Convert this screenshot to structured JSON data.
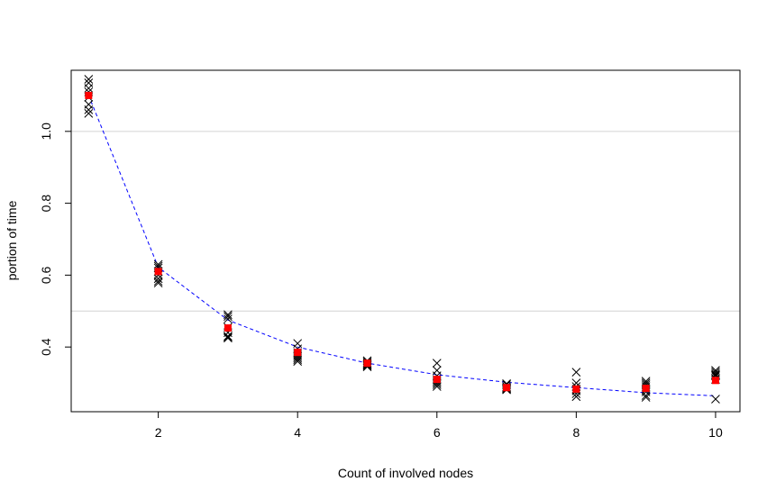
{
  "chart_data": {
    "type": "scatter",
    "title": "",
    "xlabel": "Count of involved nodes",
    "ylabel": "portion of time",
    "xlim": [
      0.75,
      10.35
    ],
    "ylim": [
      0.22,
      1.17
    ],
    "x_ticks": [
      2,
      4,
      6,
      8,
      10
    ],
    "x_tick_labels": [
      "2",
      "4",
      "6",
      "8",
      "10"
    ],
    "y_ticks": [
      0.4,
      0.6,
      0.8,
      1.0
    ],
    "y_tick_labels": [
      "0.4",
      "0.6",
      "0.8",
      "1.0"
    ],
    "reference_lines": [
      0.5,
      1.0
    ],
    "grid": false,
    "legend": "none",
    "colors": {
      "samples": "#000000",
      "mean": "#ff0000",
      "fit": "#0000ff",
      "reference": "#d3d3d3",
      "frame": "#000000"
    },
    "series": [
      {
        "marker": "x",
        "x": [
          1,
          1,
          1,
          1,
          1,
          1,
          1,
          1,
          2,
          2,
          2,
          2,
          2,
          2,
          2,
          2,
          3,
          3,
          3,
          3,
          3,
          3,
          3,
          3,
          4,
          4,
          4,
          4,
          4,
          4,
          4,
          4,
          5,
          5,
          5,
          5,
          5,
          5,
          5,
          6,
          6,
          6,
          6,
          6,
          6,
          6,
          6,
          7,
          7,
          7,
          7,
          7,
          7,
          7,
          8,
          8,
          8,
          8,
          8,
          8,
          8,
          9,
          9,
          9,
          9,
          9,
          9,
          9,
          9,
          10,
          10,
          10,
          10,
          10,
          10,
          10
        ],
        "y": [
          1.145,
          1.135,
          1.12,
          1.11,
          1.095,
          1.075,
          1.06,
          1.05,
          0.63,
          0.625,
          0.62,
          0.61,
          0.6,
          0.59,
          0.583,
          0.578,
          0.49,
          0.485,
          0.478,
          0.455,
          0.44,
          0.43,
          0.428,
          0.425,
          0.41,
          0.395,
          0.385,
          0.38,
          0.375,
          0.37,
          0.365,
          0.36,
          0.362,
          0.358,
          0.355,
          0.352,
          0.35,
          0.348,
          0.345,
          0.355,
          0.335,
          0.32,
          0.31,
          0.305,
          0.3,
          0.295,
          0.29,
          0.298,
          0.295,
          0.29,
          0.287,
          0.285,
          0.283,
          0.281,
          0.33,
          0.3,
          0.29,
          0.283,
          0.278,
          0.27,
          0.262,
          0.305,
          0.3,
          0.295,
          0.29,
          0.28,
          0.275,
          0.265,
          0.26,
          0.335,
          0.33,
          0.325,
          0.322,
          0.32,
          0.31,
          0.255
        ]
      },
      {
        "marker": "filled-square",
        "x": [
          1,
          2,
          3,
          4,
          5,
          6,
          7,
          8,
          9,
          10
        ],
        "y": [
          1.1,
          0.61,
          0.453,
          0.385,
          0.355,
          0.31,
          0.287,
          0.283,
          0.285,
          0.307
        ]
      },
      {
        "marker": "dashed-line",
        "x": [
          1,
          2,
          3,
          4,
          5,
          6,
          7,
          8,
          9,
          10
        ],
        "y": [
          1.1,
          0.622,
          0.475,
          0.4,
          0.355,
          0.323,
          0.302,
          0.287,
          0.273,
          0.264
        ]
      }
    ]
  }
}
